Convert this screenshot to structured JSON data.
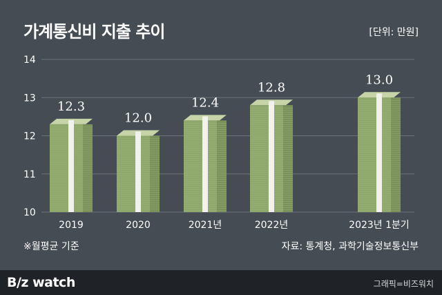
{
  "header": {
    "title": "가계통신비 지출 추이",
    "unit": "[단위: 만원]"
  },
  "footnote": "※월평균 기준",
  "source": "자료: 통계청, 과학기술정보통신부",
  "footer": {
    "logo": "B/z watch",
    "credit": "그래픽=비즈워치"
  },
  "colors": {
    "background": "#454c53",
    "bill": "#8fa86b",
    "band": "#f2f2ec",
    "footer": "#1f2327"
  },
  "chart_data": {
    "type": "bar",
    "title": "가계통신비 지출 추이",
    "ylabel": "",
    "xlabel": "",
    "unit": "만원",
    "categories": [
      "2019",
      "2020",
      "2021년",
      "2022년",
      "2023년 1분기"
    ],
    "values": [
      12.3,
      12.0,
      12.4,
      12.8,
      13.0
    ],
    "data_labels": [
      "12.3",
      "12.0",
      "12.4",
      "12.8",
      "13.0"
    ],
    "ylim": [
      10,
      14
    ],
    "yticks": [
      "10",
      "11",
      "12",
      "13",
      "14"
    ],
    "grid": true,
    "bar_style": "stacked banknotes"
  }
}
